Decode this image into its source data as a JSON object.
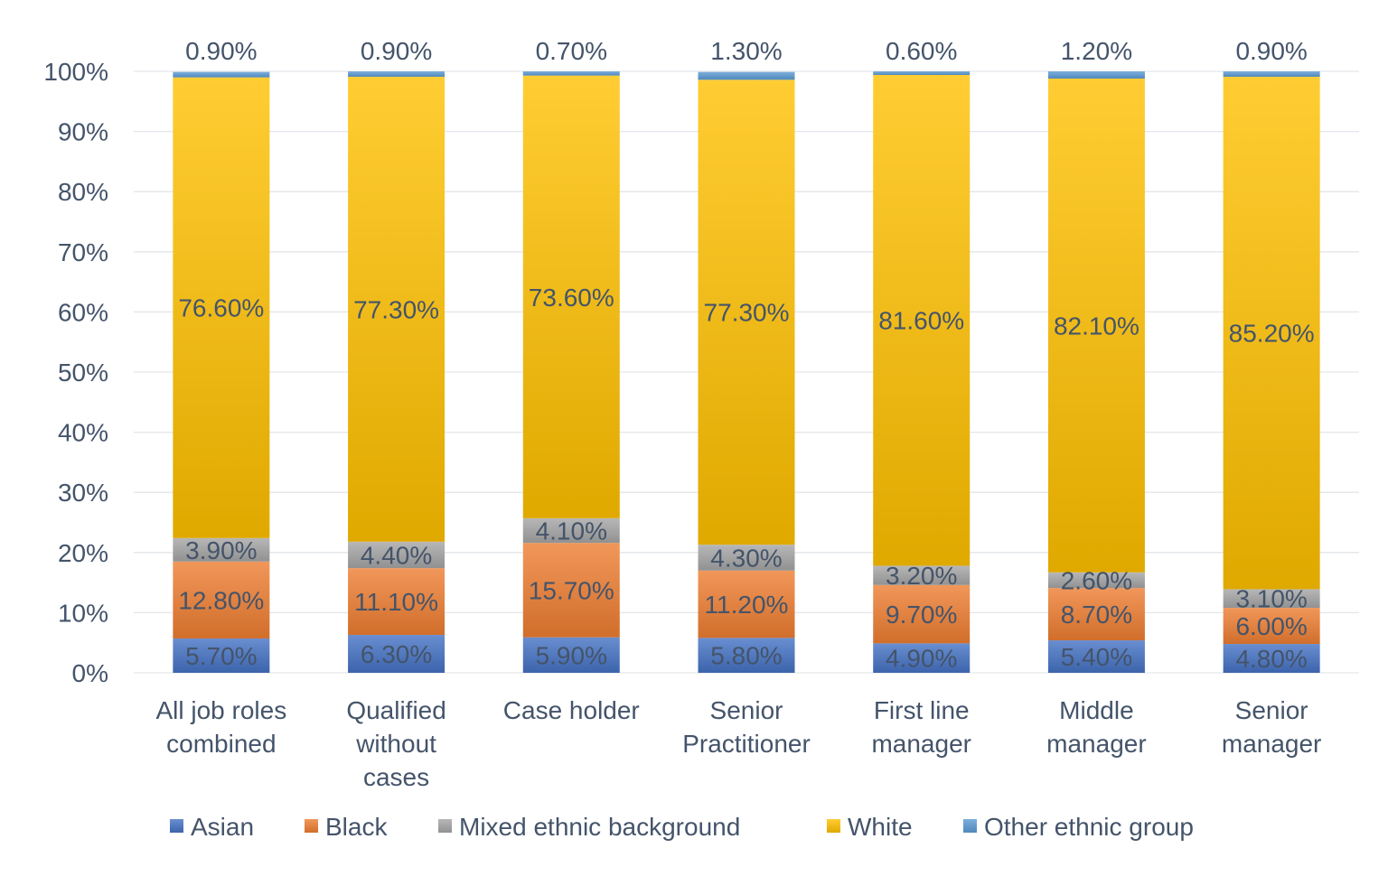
{
  "chart_data": {
    "type": "bar",
    "stacked": true,
    "categories": [
      [
        "All job roles",
        "combined"
      ],
      [
        "Qualified",
        "without",
        "cases"
      ],
      [
        "Case holder"
      ],
      [
        "Senior",
        "Practitioner"
      ],
      [
        "First line",
        "manager"
      ],
      [
        "Middle",
        "manager"
      ],
      [
        "Senior",
        "manager"
      ]
    ],
    "series": [
      {
        "name": "Asian",
        "color": "#4472C4",
        "values": [
          5.7,
          6.3,
          5.9,
          5.8,
          4.9,
          5.4,
          4.8
        ],
        "labels": [
          "5.70%",
          "6.30%",
          "5.90%",
          "5.80%",
          "4.90%",
          "5.40%",
          "4.80%"
        ]
      },
      {
        "name": "Black",
        "color": "#ED7D31",
        "values": [
          12.8,
          11.1,
          15.7,
          11.2,
          9.7,
          8.7,
          6.0
        ],
        "labels": [
          "12.80%",
          "11.10%",
          "15.70%",
          "11.20%",
          "9.70%",
          "8.70%",
          "6.00%"
        ]
      },
      {
        "name": "Mixed ethnic background",
        "color": "#A5A5A5",
        "values": [
          3.9,
          4.4,
          4.1,
          4.3,
          3.2,
          2.6,
          3.1
        ],
        "labels": [
          "3.90%",
          "4.40%",
          "4.10%",
          "4.30%",
          "3.20%",
          "2.60%",
          "3.10%"
        ]
      },
      {
        "name": "White",
        "color": "#FFC000",
        "values": [
          76.6,
          77.3,
          73.6,
          77.3,
          81.6,
          82.1,
          85.2
        ],
        "labels": [
          "76.60%",
          "77.30%",
          "73.60%",
          "77.30%",
          "81.60%",
          "82.10%",
          "85.20%"
        ]
      },
      {
        "name": "Other ethnic group",
        "color": "#5B9BD5",
        "values": [
          0.9,
          0.9,
          0.7,
          1.3,
          0.6,
          1.2,
          0.9
        ],
        "labels": [
          "0.90%",
          "0.90%",
          "0.70%",
          "1.30%",
          "0.60%",
          "1.20%",
          "0.90%"
        ]
      }
    ],
    "ylim": [
      0,
      100
    ],
    "yticks": [
      "0%",
      "10%",
      "20%",
      "30%",
      "40%",
      "50%",
      "60%",
      "70%",
      "80%",
      "90%",
      "100%"
    ],
    "grid": true,
    "legend": "bottom",
    "title": "",
    "xlabel": "",
    "ylabel": ""
  }
}
